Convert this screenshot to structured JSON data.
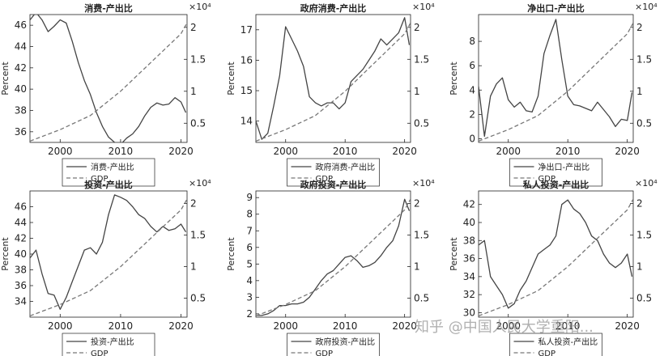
{
  "watermark": "知乎 @中国人民大学重阳...",
  "colors": {
    "series": "#444444",
    "gdp": "#777777",
    "axis": "#222222",
    "text": "#222222"
  },
  "chart_data": [
    {
      "type": "line",
      "title": "消费-产出比",
      "ylabel": "Percent",
      "xlim": [
        1995,
        2021
      ],
      "ylim": [
        35,
        47
      ],
      "left_ticks": [
        36,
        38,
        40,
        42,
        44,
        46
      ],
      "y2lim": [
        0.2,
        2.2
      ],
      "y2_ticks": [
        0.5,
        1,
        1.5,
        2
      ],
      "y2_exponent": "×10⁴",
      "x_ticks": [
        2000,
        2010,
        2020
      ],
      "grid": false,
      "legend_position": "below",
      "series": [
        {
          "name": "消费-产出比",
          "axis": "left",
          "style": "solid",
          "x": [
            1995,
            1996,
            1997,
            1998,
            1999,
            2000,
            2001,
            2002,
            2003,
            2004,
            2005,
            2006,
            2007,
            2008,
            2009,
            2010,
            2011,
            2012,
            2013,
            2014,
            2015,
            2016,
            2017,
            2018,
            2019,
            2020,
            2020.8
          ],
          "y": [
            46.5,
            47.2,
            46.5,
            45.4,
            45.9,
            46.5,
            46.2,
            44.5,
            42.5,
            40.8,
            39.5,
            37.8,
            36.5,
            35.5,
            35.0,
            34.8,
            35.4,
            35.8,
            36.5,
            37.5,
            38.3,
            38.7,
            38.5,
            38.6,
            39.2,
            38.8,
            37.8
          ]
        },
        {
          "name": "GDP",
          "axis": "right",
          "style": "dashed",
          "x": [
            1995,
            2000,
            2005,
            2010,
            2015,
            2020,
            2021
          ],
          "y": [
            0.22,
            0.4,
            0.62,
            1.0,
            1.45,
            1.9,
            2.07
          ]
        }
      ]
    },
    {
      "type": "line",
      "title": "政府消费-产出比",
      "ylabel": "Percent",
      "xlim": [
        1995,
        2021
      ],
      "ylim": [
        13.3,
        17.5
      ],
      "left_ticks": [
        14,
        15,
        16,
        17
      ],
      "y2lim": [
        0.2,
        2.2
      ],
      "y2_ticks": [
        0.5,
        1,
        1.5,
        2
      ],
      "y2_exponent": "×10⁴",
      "x_ticks": [
        2000,
        2010,
        2020
      ],
      "grid": false,
      "legend_position": "below",
      "series": [
        {
          "name": "政府消费-产出比",
          "axis": "left",
          "style": "solid",
          "x": [
            1995,
            1996,
            1997,
            1998,
            1999,
            2000,
            2001,
            2002,
            2003,
            2004,
            2005,
            2006,
            2007,
            2008,
            2009,
            2010,
            2011,
            2012,
            2013,
            2014,
            2015,
            2016,
            2017,
            2018,
            2019,
            2020,
            2020.8
          ],
          "y": [
            14.0,
            13.4,
            13.6,
            14.5,
            15.5,
            17.1,
            16.7,
            16.3,
            15.8,
            14.8,
            14.6,
            14.5,
            14.6,
            14.6,
            14.4,
            14.6,
            15.3,
            15.5,
            15.7,
            16.0,
            16.3,
            16.7,
            16.5,
            16.7,
            16.9,
            17.4,
            16.5
          ]
        },
        {
          "name": "GDP",
          "axis": "right",
          "style": "dashed",
          "x": [
            1995,
            2000,
            2005,
            2010,
            2015,
            2020,
            2021
          ],
          "y": [
            0.22,
            0.4,
            0.62,
            1.0,
            1.45,
            1.9,
            2.07
          ]
        }
      ]
    },
    {
      "type": "line",
      "title": "净出口-产出比",
      "ylabel": "Percent",
      "xlim": [
        1995,
        2021
      ],
      "ylim": [
        -0.3,
        10.2
      ],
      "left_ticks": [
        0,
        2,
        4,
        6,
        8
      ],
      "y2lim": [
        0.2,
        2.2
      ],
      "y2_ticks": [
        0.5,
        1,
        1.5,
        2
      ],
      "y2_exponent": "×10⁴",
      "x_ticks": [
        2000,
        2010,
        2020
      ],
      "grid": false,
      "legend_position": "below",
      "series": [
        {
          "name": "净出口-产出比",
          "axis": "left",
          "style": "solid",
          "x": [
            1995,
            1996,
            1997,
            1998,
            1999,
            2000,
            2001,
            2002,
            2003,
            2004,
            2005,
            2006,
            2007,
            2008,
            2009,
            2010,
            2011,
            2012,
            2013,
            2014,
            2015,
            2016,
            2017,
            2018,
            2019,
            2020,
            2020.8
          ],
          "y": [
            4.3,
            0.2,
            3.5,
            4.5,
            5.0,
            3.2,
            2.6,
            3.0,
            2.3,
            2.2,
            3.5,
            7.0,
            8.5,
            9.8,
            6.5,
            3.5,
            2.8,
            2.7,
            2.5,
            2.3,
            3.0,
            2.4,
            1.8,
            1.0,
            1.6,
            1.5,
            3.8
          ]
        },
        {
          "name": "GDP",
          "axis": "right",
          "style": "dashed",
          "x": [
            1995,
            2000,
            2005,
            2010,
            2015,
            2020,
            2021
          ],
          "y": [
            0.22,
            0.4,
            0.62,
            1.0,
            1.45,
            1.9,
            2.07
          ]
        }
      ]
    },
    {
      "type": "line",
      "title": "投资-产出比",
      "ylabel": "Percent",
      "xlim": [
        1995,
        2021
      ],
      "ylim": [
        32,
        48
      ],
      "left_ticks": [
        34,
        36,
        38,
        40,
        42,
        44,
        46
      ],
      "y2lim": [
        0.2,
        2.2
      ],
      "y2_ticks": [
        0.5,
        1,
        1.5,
        2
      ],
      "y2_exponent": "×10⁴",
      "x_ticks": [
        2000,
        2010,
        2020
      ],
      "grid": false,
      "legend_position": "below",
      "series": [
        {
          "name": "投资-产出比",
          "axis": "left",
          "style": "solid",
          "x": [
            1995,
            1996,
            1997,
            1998,
            1999,
            2000,
            2001,
            2002,
            2003,
            2004,
            2005,
            2006,
            2007,
            2008,
            2009,
            2010,
            2011,
            2012,
            2013,
            2014,
            2015,
            2016,
            2017,
            2018,
            2019,
            2020,
            2020.8
          ],
          "y": [
            39.5,
            40.5,
            37.5,
            35.0,
            34.8,
            33.0,
            34.5,
            36.5,
            38.5,
            40.5,
            40.8,
            40.0,
            41.5,
            45.0,
            47.5,
            47.2,
            46.8,
            46.0,
            45.0,
            44.5,
            43.5,
            42.8,
            43.5,
            43.0,
            43.2,
            43.8,
            42.8
          ]
        },
        {
          "name": "GDP",
          "axis": "right",
          "style": "dashed",
          "x": [
            1995,
            2000,
            2005,
            2010,
            2015,
            2020,
            2021
          ],
          "y": [
            0.22,
            0.4,
            0.62,
            1.0,
            1.45,
            1.9,
            2.07
          ]
        }
      ]
    },
    {
      "type": "line",
      "title": "政府投资-产出比",
      "ylabel": "Percent",
      "xlim": [
        1995,
        2021
      ],
      "ylim": [
        1.8,
        9.4
      ],
      "left_ticks": [
        2,
        3,
        4,
        5,
        6,
        7,
        8,
        9
      ],
      "y2lim": [
        0.2,
        2.2
      ],
      "y2_ticks": [
        0.5,
        1,
        1.5,
        2
      ],
      "y2_exponent": "×10⁴",
      "x_ticks": [
        2000,
        2010,
        2020
      ],
      "grid": false,
      "legend_position": "below",
      "series": [
        {
          "name": "政府投资-产出比",
          "axis": "left",
          "style": "solid",
          "x": [
            1995,
            1996,
            1997,
            1998,
            1999,
            2000,
            2001,
            2002,
            2003,
            2004,
            2005,
            2006,
            2007,
            2008,
            2009,
            2010,
            2011,
            2012,
            2013,
            2014,
            2015,
            2016,
            2017,
            2018,
            2019,
            2020,
            2020.8
          ],
          "y": [
            1.9,
            1.9,
            2.0,
            2.2,
            2.5,
            2.5,
            2.6,
            2.6,
            2.7,
            3.0,
            3.5,
            4.0,
            4.4,
            4.6,
            5.0,
            5.4,
            5.5,
            5.2,
            4.8,
            4.9,
            5.1,
            5.5,
            6.0,
            6.4,
            7.3,
            8.9,
            8.2
          ]
        },
        {
          "name": "GDP",
          "axis": "right",
          "style": "dashed",
          "x": [
            1995,
            2000,
            2005,
            2010,
            2015,
            2020,
            2021
          ],
          "y": [
            0.22,
            0.4,
            0.62,
            1.0,
            1.45,
            1.9,
            2.07
          ]
        }
      ]
    },
    {
      "type": "line",
      "title": "私人投资-产出比",
      "ylabel": "Percent",
      "xlim": [
        1995,
        2021
      ],
      "ylim": [
        29.5,
        43.5
      ],
      "left_ticks": [
        30,
        32,
        34,
        36,
        38,
        40,
        42
      ],
      "y2lim": [
        0.2,
        2.2
      ],
      "y2_ticks": [
        0.5,
        1,
        1.5,
        2
      ],
      "y2_exponent": "×10⁴",
      "x_ticks": [
        2000,
        2010,
        2020
      ],
      "grid": false,
      "legend_position": "below",
      "series": [
        {
          "name": "私人投资-产出比",
          "axis": "left",
          "style": "solid",
          "x": [
            1995,
            1996,
            1997,
            1998,
            1999,
            2000,
            2001,
            2002,
            2003,
            2004,
            2005,
            2006,
            2007,
            2008,
            2009,
            2010,
            2011,
            2012,
            2013,
            2014,
            2015,
            2016,
            2017,
            2018,
            2019,
            2020,
            2020.8
          ],
          "y": [
            37.5,
            38.0,
            34.0,
            33.0,
            32.0,
            30.5,
            31.0,
            32.5,
            33.5,
            35.0,
            36.5,
            37.0,
            37.5,
            38.5,
            42.0,
            42.5,
            41.5,
            41.0,
            40.0,
            38.5,
            38.0,
            36.5,
            35.5,
            35.0,
            35.5,
            36.5,
            34.0
          ]
        },
        {
          "name": "GDP",
          "axis": "right",
          "style": "dashed",
          "x": [
            1995,
            2000,
            2005,
            2010,
            2015,
            2020,
            2021
          ],
          "y": [
            0.22,
            0.4,
            0.62,
            1.0,
            1.45,
            1.9,
            2.07
          ]
        }
      ]
    }
  ]
}
